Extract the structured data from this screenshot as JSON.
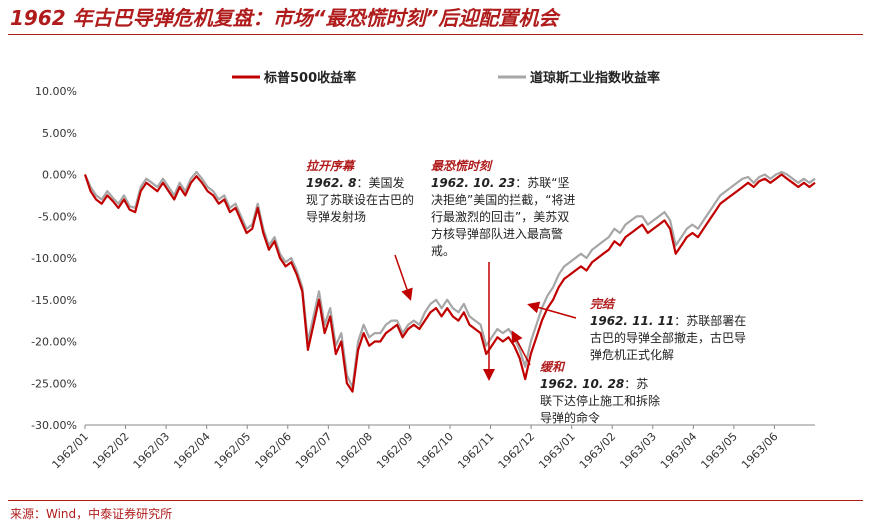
{
  "title": "1962 年古巴导弹危机复盘：市场“最恐慌时刻”后迎配置机会",
  "source": "来源：Wind，中泰证券研究所",
  "chart_data": {
    "type": "line",
    "ylim": [
      -30,
      10
    ],
    "yticks": [
      "10.00%",
      "5.00%",
      "0.00%",
      "-5.00%",
      "-10.00%",
      "-15.00%",
      "-20.00%",
      "-25.00%",
      "-30.00%"
    ],
    "xticks": [
      "1962/01",
      "1962/02",
      "1962/03",
      "1962/04",
      "1962/05",
      "1962/06",
      "1962/07",
      "1962/08",
      "1962/09",
      "1962/10",
      "1962/11",
      "1962/12",
      "1963/01",
      "1963/02",
      "1963/03",
      "1963/04",
      "1963/05",
      "1963/06"
    ],
    "series": [
      {
        "name": "标普500收益率",
        "color": "#c00000",
        "values": [
          0.0,
          -2.0,
          -3.0,
          -3.5,
          -2.5,
          -3.2,
          -4.0,
          -3.0,
          -4.2,
          -4.5,
          -2.0,
          -1.0,
          -1.5,
          -2.0,
          -1.0,
          -2.0,
          -3.0,
          -1.5,
          -2.5,
          -1.0,
          -0.2,
          -1.0,
          -2.0,
          -2.5,
          -3.5,
          -3.0,
          -4.5,
          -4.0,
          -5.5,
          -7.0,
          -6.5,
          -4.0,
          -7.0,
          -9.0,
          -8.0,
          -10.0,
          -11.0,
          -10.5,
          -12.0,
          -14.0,
          -21.0,
          -18.0,
          -15.0,
          -19.0,
          -17.0,
          -21.5,
          -20.0,
          -25.0,
          -26.0,
          -21.0,
          -19.0,
          -20.5,
          -20.0,
          -20.0,
          -19.0,
          -18.5,
          -18.0,
          -19.5,
          -18.5,
          -18.0,
          -18.5,
          -17.5,
          -16.5,
          -16.0,
          -17.0,
          -16.0,
          -17.0,
          -17.5,
          -16.5,
          -18.0,
          -18.5,
          -19.0,
          -21.5,
          -20.5,
          -19.5,
          -20.0,
          -19.5,
          -20.5,
          -22.0,
          -24.5,
          -21.5,
          -19.5,
          -17.5,
          -16.0,
          -15.0,
          -13.5,
          -12.5,
          -12.0,
          -11.5,
          -11.0,
          -11.5,
          -10.5,
          -10.0,
          -9.5,
          -9.0,
          -8.0,
          -8.5,
          -7.5,
          -7.0,
          -6.5,
          -6.0,
          -7.0,
          -6.5,
          -6.0,
          -5.5,
          -6.5,
          -9.5,
          -8.5,
          -7.5,
          -7.0,
          -7.5,
          -6.5,
          -5.5,
          -4.5,
          -3.5,
          -3.0,
          -2.5,
          -2.0,
          -1.5,
          -1.0,
          -1.5,
          -0.8,
          -0.5,
          -1.0,
          -0.5,
          0.0,
          -0.5,
          -1.0,
          -1.5,
          -1.0,
          -1.5,
          -1.0
        ]
      },
      {
        "name": "道琼斯工业指数收益率",
        "color": "#a6a6a6",
        "values": [
          0.0,
          -1.5,
          -2.5,
          -3.0,
          -2.0,
          -2.8,
          -3.5,
          -2.5,
          -3.8,
          -4.0,
          -1.5,
          -0.5,
          -1.0,
          -1.5,
          -0.5,
          -1.5,
          -2.5,
          -1.0,
          -2.0,
          -0.5,
          0.3,
          -0.5,
          -1.5,
          -2.0,
          -3.0,
          -2.5,
          -4.0,
          -3.5,
          -5.0,
          -6.5,
          -6.0,
          -3.5,
          -6.5,
          -8.5,
          -7.5,
          -9.5,
          -10.5,
          -10.0,
          -11.5,
          -13.5,
          -20.0,
          -17.0,
          -14.0,
          -18.0,
          -16.0,
          -20.5,
          -19.0,
          -24.0,
          -25.5,
          -20.0,
          -18.0,
          -19.5,
          -19.0,
          -19.0,
          -18.0,
          -17.5,
          -17.5,
          -19.0,
          -18.0,
          -17.5,
          -18.0,
          -16.5,
          -15.5,
          -15.0,
          -16.0,
          -15.0,
          -16.0,
          -16.5,
          -15.5,
          -17.0,
          -17.5,
          -18.0,
          -20.5,
          -19.5,
          -18.5,
          -19.0,
          -18.5,
          -19.5,
          -21.0,
          -23.0,
          -20.0,
          -18.0,
          -16.0,
          -14.5,
          -13.5,
          -12.0,
          -11.0,
          -10.5,
          -10.0,
          -9.5,
          -10.0,
          -9.0,
          -8.5,
          -8.0,
          -7.5,
          -6.5,
          -7.0,
          -6.0,
          -5.5,
          -5.0,
          -5.0,
          -6.0,
          -5.5,
          -5.0,
          -4.5,
          -5.5,
          -8.5,
          -7.5,
          -6.5,
          -6.0,
          -6.5,
          -5.5,
          -4.5,
          -3.5,
          -2.5,
          -2.0,
          -1.5,
          -1.0,
          -0.5,
          -0.3,
          -1.0,
          -0.3,
          0.0,
          -0.5,
          0.0,
          0.3,
          0.0,
          -0.5,
          -1.0,
          -0.5,
          -1.0,
          -0.5
        ]
      }
    ],
    "annotations": [
      {
        "heading": "拉开序幕",
        "date": "1962. 8",
        "text": "：美国发现了苏联设在古巴的导弹发射场"
      },
      {
        "heading": "最恐慌时刻",
        "date": "1962. 10. 23",
        "text": "：苏联“坚决拒绝”美国的拦截，“将进行最激烈的回击”，美苏双方核导弹部队进入最高警戒。"
      },
      {
        "heading": "完结",
        "date": "1962. 11. 11",
        "text": "：苏联部署在古巴的导弹全部撤走，古巴导弹危机正式化解"
      },
      {
        "heading": "缓和",
        "date": "1962. 10. 28",
        "text": "：苏联下达停止施工和拆除导弹的命令"
      }
    ]
  }
}
